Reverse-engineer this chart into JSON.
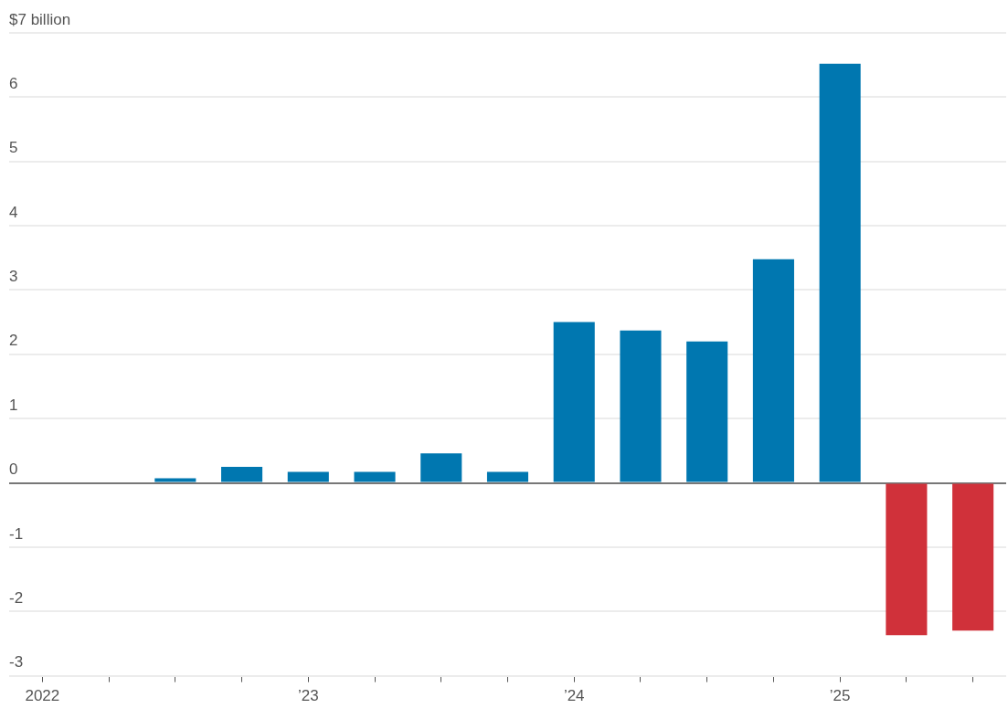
{
  "chart_data": {
    "type": "bar",
    "categories": [
      "2022",
      null,
      null,
      null,
      "’23",
      null,
      null,
      null,
      "’24",
      null,
      null,
      null,
      "’25",
      null,
      null
    ],
    "values": [
      null,
      null,
      0.07,
      0.25,
      0.17,
      0.17,
      0.46,
      0.17,
      2.5,
      2.37,
      2.2,
      3.48,
      6.52,
      -2.37,
      -2.3
    ],
    "colors": [
      "#0077b0",
      "#0077b0",
      "#0077b0",
      "#0077b0",
      "#0077b0",
      "#0077b0",
      "#0077b0",
      "#0077b0",
      "#0077b0",
      "#0077b0",
      "#0077b0",
      "#0077b0",
      "#0077b0",
      "#d0313a",
      "#d0313a"
    ],
    "ylim": [
      -3,
      7
    ],
    "yticks": [
      -3,
      -2,
      -1,
      0,
      1,
      2,
      3,
      4,
      5,
      6,
      {
        "value": 7,
        "label": "$7 billion"
      }
    ],
    "grid": "y"
  }
}
